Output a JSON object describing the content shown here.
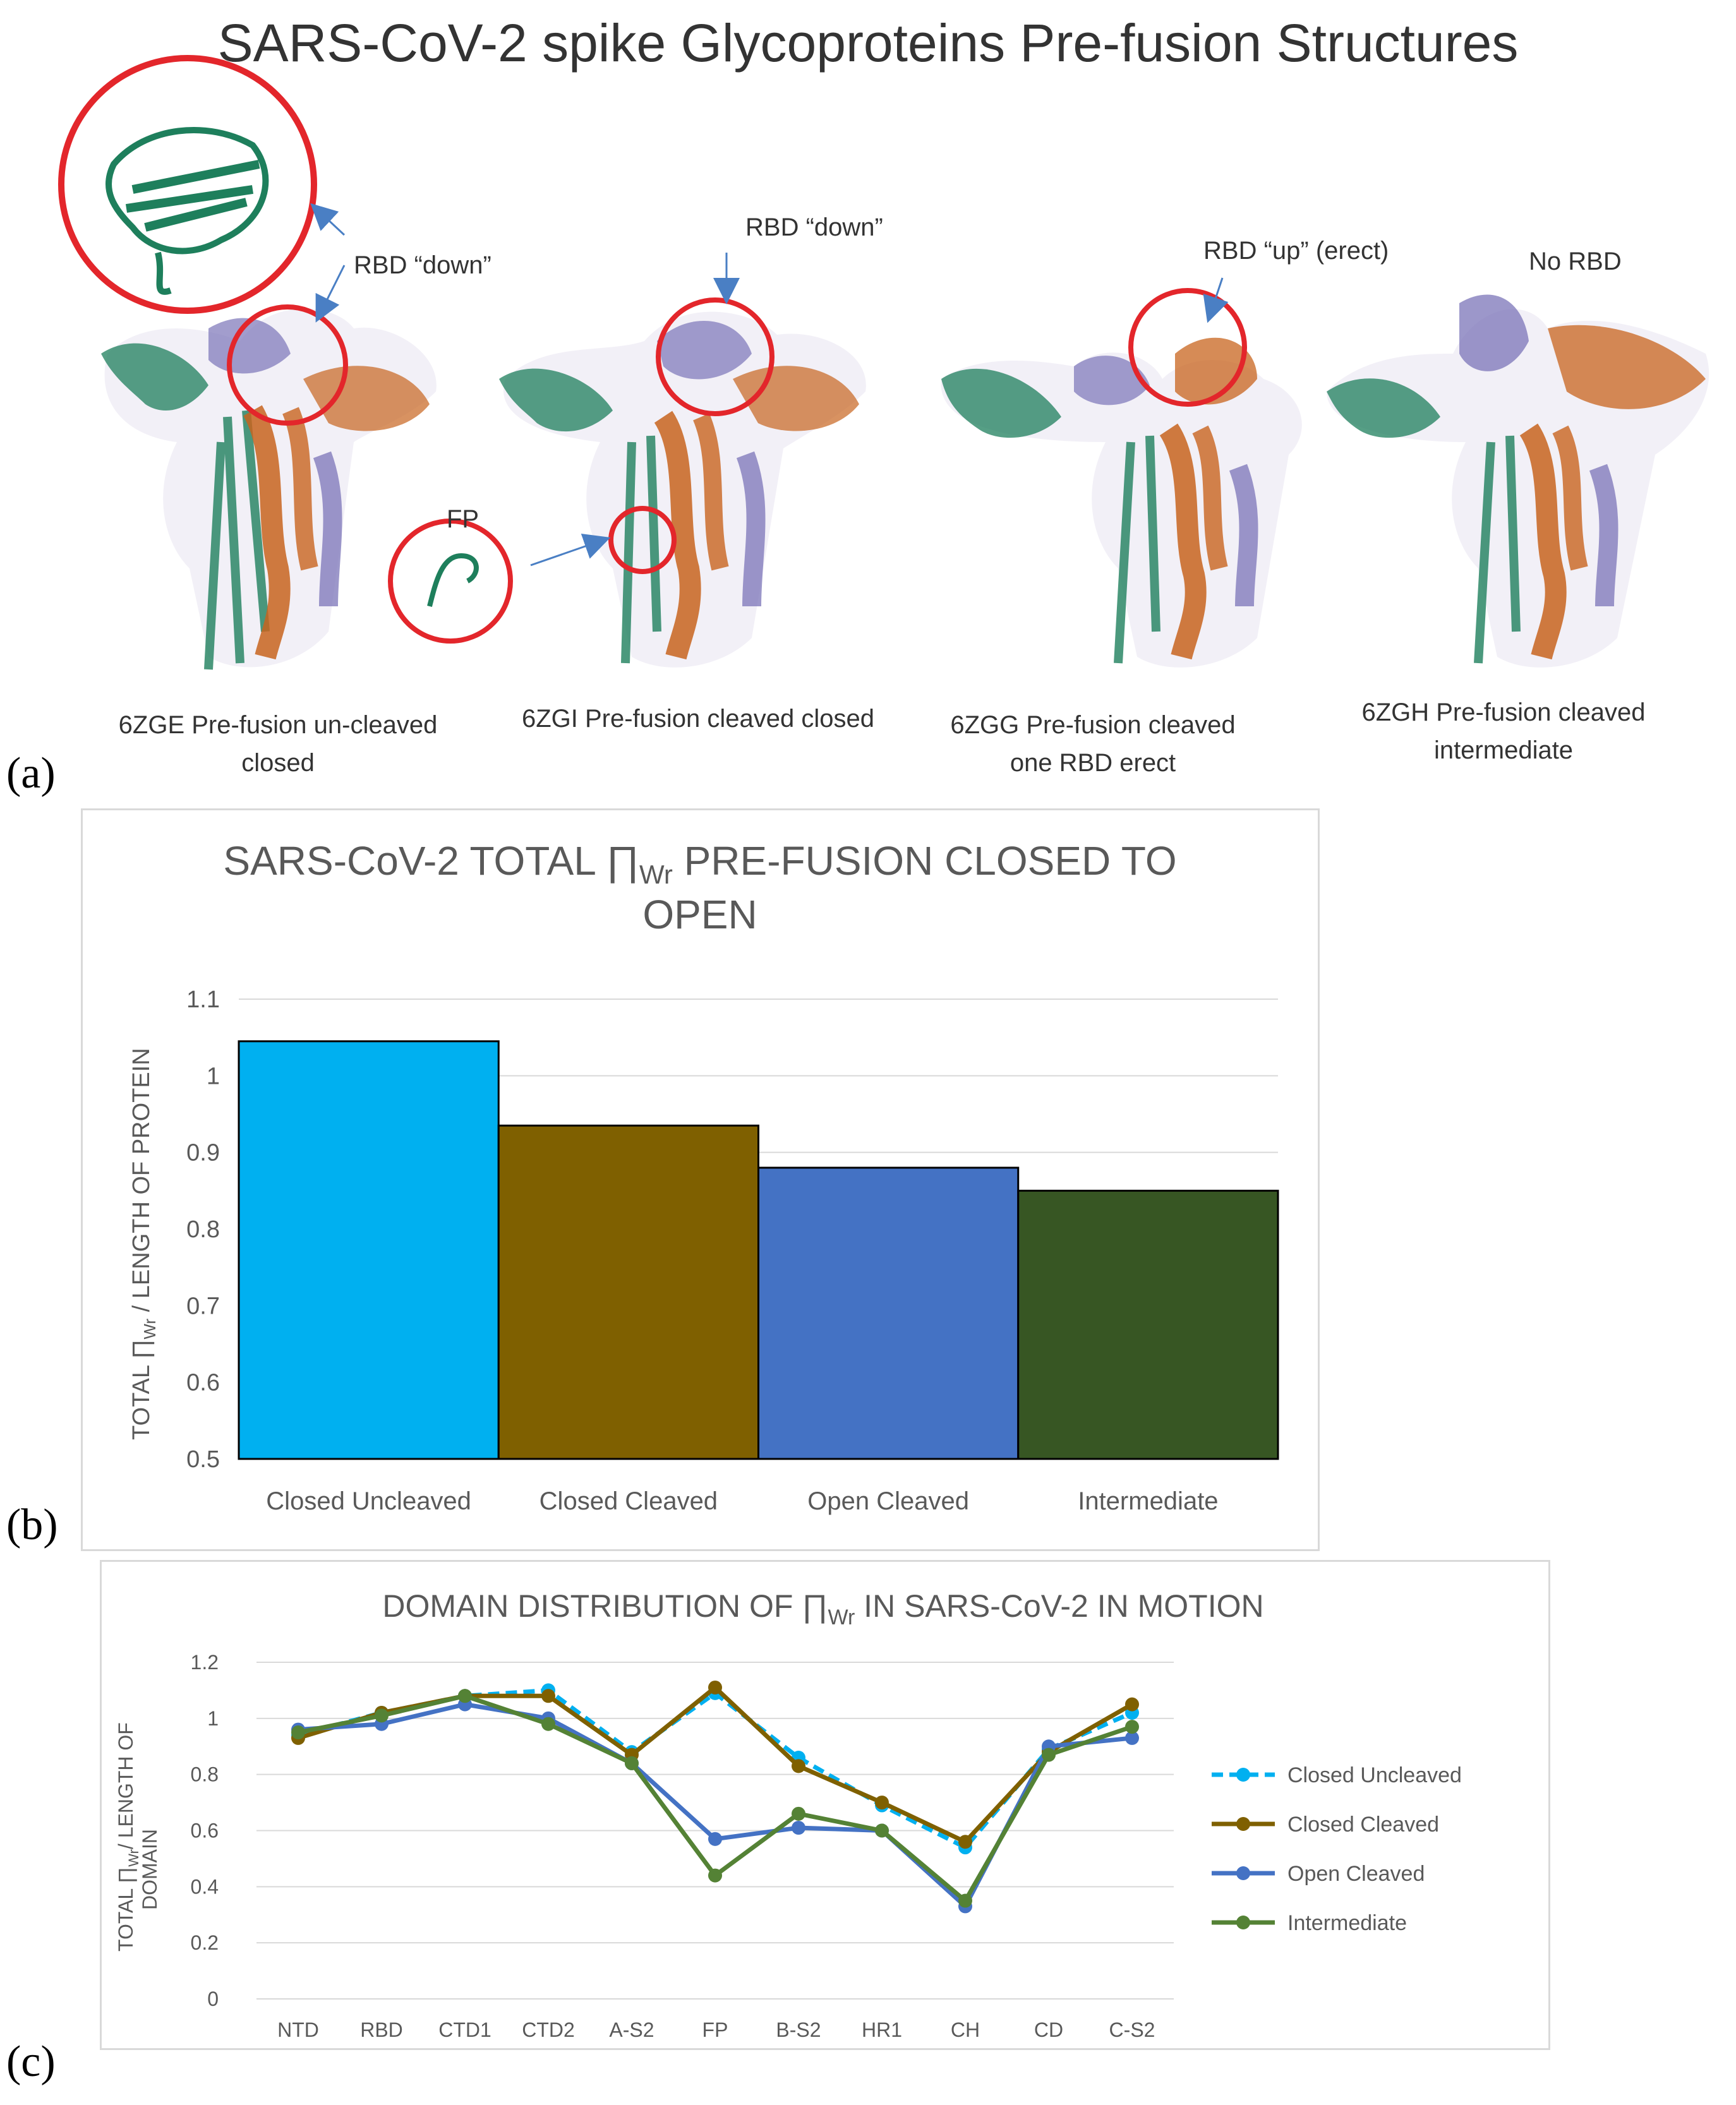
{
  "panel_a": {
    "title": "SARS-CoV-2 spike Glycoproteins Pre-fusion Structures",
    "letter": "(a)",
    "callouts": {
      "rbd_down_1": "RBD “down”",
      "rbd_down_2": "RBD “down”",
      "rbd_up": "RBD “up” (erect)",
      "no_rbd": "No RBD",
      "fp": "FP"
    },
    "structures": [
      {
        "line1": "6ZGE Pre-fusion un-cleaved",
        "line2": "closed"
      },
      {
        "line1": "6ZGI Pre-fusion cleaved closed",
        "line2": ""
      },
      {
        "line1": "6ZGG Pre-fusion cleaved",
        "line2": "one RBD erect"
      },
      {
        "line1": "6ZGH Pre-fusion cleaved",
        "line2": "intermediate"
      }
    ],
    "colors": {
      "chain_a": "#1e7f5c",
      "chain_b": "#c8641e",
      "chain_c": "#7b74b8",
      "highlight": "#e3262b",
      "arrow": "#4a7fc4"
    }
  },
  "chart_data": [
    {
      "type": "bar",
      "letter": "(b)",
      "title_line1_pre": "SARS-CoV-2 TOTAL ",
      "title_symbol": "∏",
      "title_sub": "Wr",
      "title_line1_post": " PRE-FUSION CLOSED TO",
      "title_line2": "OPEN",
      "ylabel_pre": "TOTAL ∏",
      "ylabel_sub": "Wr",
      "ylabel_post": " / LENGTH OF PROTEIN",
      "categories": [
        "Closed Uncleaved",
        "Closed Cleaved",
        "Open Cleaved",
        "Intermediate"
      ],
      "values": [
        1.045,
        0.935,
        0.88,
        0.85
      ],
      "colors": [
        "#00b0f0",
        "#7f6000",
        "#4472c4",
        "#375623"
      ],
      "ylim": [
        0.5,
        1.1
      ],
      "yticks": [
        "0.5",
        "0.6",
        "0.7",
        "0.8",
        "0.9",
        "1",
        "1.1"
      ]
    },
    {
      "type": "line",
      "letter": "(c)",
      "title_pre": "DOMAIN DISTRIBUTION OF ",
      "title_symbol": "∏",
      "title_sub": "Wr",
      "title_post": " IN SARS-CoV-2 IN MOTION",
      "ylabel1_pre": "TOTAL ∏",
      "ylabel1_sub": "Wr",
      "ylabel1_post": "/ LENGTH OF",
      "ylabel2": "DOMAIN",
      "categories": [
        "NTD",
        "RBD",
        "CTD1",
        "CTD2",
        "A-S2",
        "FP",
        "B-S2",
        "HR1",
        "CH",
        "CD",
        "C-S2"
      ],
      "ylim": [
        0,
        1.2
      ],
      "yticks": [
        "0",
        "0.2",
        "0.4",
        "0.6",
        "0.8",
        "1",
        "1.2"
      ],
      "series": [
        {
          "name": "Closed Uncleaved",
          "color": "#00b0f0",
          "dashed": true,
          "values": [
            0.94,
            1.02,
            1.08,
            1.1,
            0.88,
            1.09,
            0.86,
            0.69,
            0.54,
            0.89,
            1.02
          ]
        },
        {
          "name": "Closed Cleaved",
          "color": "#7f6000",
          "dashed": false,
          "values": [
            0.93,
            1.02,
            1.08,
            1.08,
            0.87,
            1.11,
            0.83,
            0.7,
            0.56,
            0.88,
            1.05
          ]
        },
        {
          "name": "Open Cleaved",
          "color": "#4472c4",
          "dashed": false,
          "values": [
            0.96,
            0.98,
            1.05,
            1.0,
            0.84,
            0.57,
            0.61,
            0.6,
            0.33,
            0.9,
            0.93
          ]
        },
        {
          "name": "Intermediate",
          "color": "#548235",
          "dashed": false,
          "values": [
            0.95,
            1.01,
            1.08,
            0.98,
            0.84,
            0.44,
            0.66,
            0.6,
            0.35,
            0.87,
            0.97
          ]
        }
      ]
    }
  ]
}
